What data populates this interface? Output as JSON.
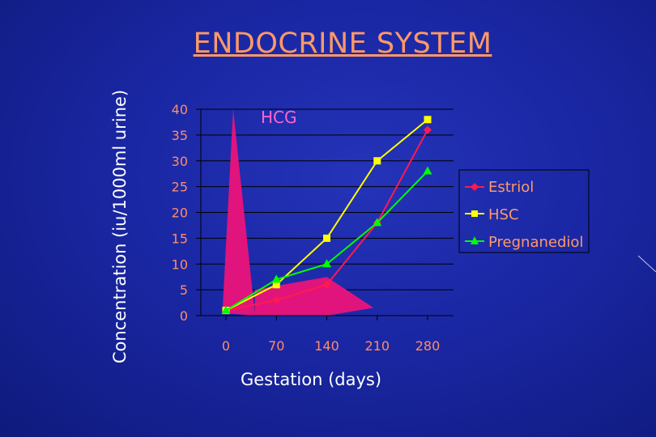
{
  "slide": {
    "title": "ENDOCRINE SYSTEM"
  },
  "chart_data": {
    "type": "line",
    "title": "",
    "xlabel": "Gestation (days)",
    "ylabel": "Concentration (iu/1000ml urine)",
    "categories": [
      "0",
      "70",
      "140",
      "210",
      "280"
    ],
    "x": [
      0,
      70,
      140,
      210,
      280
    ],
    "ylim": [
      0,
      40
    ],
    "yticks": [
      0,
      5,
      10,
      15,
      20,
      25,
      30,
      35,
      40
    ],
    "grid": true,
    "legend": "right",
    "series": [
      {
        "name": "Estriol",
        "values": [
          1,
          3,
          6,
          18,
          36
        ],
        "color": "#ff1a4d",
        "marker": "diamond"
      },
      {
        "name": "HSC",
        "values": [
          1,
          6,
          15,
          30,
          38
        ],
        "color": "#ffff00",
        "marker": "square"
      },
      {
        "name": "Pregnanediol",
        "values": [
          1,
          7,
          10,
          18,
          28
        ],
        "color": "#00ff00",
        "marker": "triangle"
      }
    ],
    "annotations": [
      {
        "text": "HCG",
        "color": "#ff66cc"
      }
    ],
    "hcg_area": {
      "color": "#e0147c",
      "peak": {
        "x": 10,
        "y": 40
      },
      "profile": [
        [
          -5,
          0.5
        ],
        [
          10,
          40
        ],
        [
          40,
          0.5
        ],
        [
          40,
          5
        ],
        [
          140,
          7.5
        ],
        [
          205,
          1.5
        ],
        [
          140,
          0
        ],
        [
          40,
          0
        ]
      ]
    }
  }
}
